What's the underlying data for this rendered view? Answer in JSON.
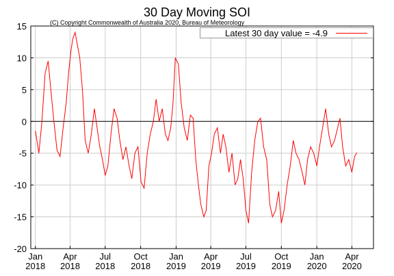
{
  "chart_data": {
    "type": "line",
    "title": "30 Day Moving SOI",
    "subtitle": "(C) Copyright Commonwealth of Australia 2020, Bureau of Meteorology",
    "xlabel": "",
    "ylabel": "",
    "ylim": [
      -20,
      15
    ],
    "yticks": [
      15,
      10,
      5,
      0,
      -5,
      -10,
      -15,
      -20
    ],
    "xticks": [
      {
        "month": "Jan",
        "year": "2018",
        "date": "2018-01-01"
      },
      {
        "month": "Apr",
        "year": "2018",
        "date": "2018-04-01"
      },
      {
        "month": "Jul",
        "year": "2018",
        "date": "2018-07-01"
      },
      {
        "month": "Oct",
        "year": "2018",
        "date": "2018-10-01"
      },
      {
        "month": "Jan",
        "year": "2019",
        "date": "2019-01-01"
      },
      {
        "month": "Apr",
        "year": "2019",
        "date": "2019-04-01"
      },
      {
        "month": "Jul",
        "year": "2019",
        "date": "2019-07-01"
      },
      {
        "month": "Oct",
        "year": "2019",
        "date": "2019-10-01"
      },
      {
        "month": "Jan",
        "year": "2020",
        "date": "2020-01-01"
      },
      {
        "month": "Apr",
        "year": "2020",
        "date": "2020-04-01"
      }
    ],
    "grid": true,
    "legend_position": "top-right",
    "series": [
      {
        "name": "Latest 30 day value = -4.9",
        "color": "#ff0000",
        "x": [
          "2018-01-01",
          "2018-01-10",
          "2018-01-18",
          "2018-01-26",
          "2018-02-03",
          "2018-02-10",
          "2018-02-18",
          "2018-02-26",
          "2018-03-06",
          "2018-03-14",
          "2018-03-22",
          "2018-03-28",
          "2018-04-03",
          "2018-04-08",
          "2018-04-14",
          "2018-04-20",
          "2018-04-26",
          "2018-05-03",
          "2018-05-10",
          "2018-05-18",
          "2018-05-26",
          "2018-06-03",
          "2018-06-10",
          "2018-06-17",
          "2018-06-24",
          "2018-07-01",
          "2018-07-08",
          "2018-07-16",
          "2018-07-24",
          "2018-08-01",
          "2018-08-08",
          "2018-08-16",
          "2018-08-24",
          "2018-09-01",
          "2018-09-08",
          "2018-09-16",
          "2018-09-24",
          "2018-10-02",
          "2018-10-10",
          "2018-10-18",
          "2018-10-26",
          "2018-11-03",
          "2018-11-10",
          "2018-11-18",
          "2018-11-26",
          "2018-12-04",
          "2018-12-11",
          "2018-12-18",
          "2018-12-24",
          "2018-12-30",
          "2019-01-07",
          "2019-01-14",
          "2019-01-22",
          "2019-01-30",
          "2019-02-07",
          "2019-02-14",
          "2019-02-21",
          "2019-02-28",
          "2019-03-06",
          "2019-03-14",
          "2019-03-20",
          "2019-03-27",
          "2019-04-03",
          "2019-04-10",
          "2019-04-18",
          "2019-04-26",
          "2019-05-03",
          "2019-05-10",
          "2019-05-18",
          "2019-05-26",
          "2019-06-03",
          "2019-06-10",
          "2019-06-17",
          "2019-06-24",
          "2019-07-01",
          "2019-07-08",
          "2019-07-16",
          "2019-07-24",
          "2019-08-01",
          "2019-08-08",
          "2019-08-16",
          "2019-08-24",
          "2019-09-01",
          "2019-09-08",
          "2019-09-16",
          "2019-09-24",
          "2019-10-01",
          "2019-10-08",
          "2019-10-16",
          "2019-10-24",
          "2019-11-01",
          "2019-11-08",
          "2019-11-16",
          "2019-11-24",
          "2019-12-01",
          "2019-12-08",
          "2019-12-16",
          "2019-12-24",
          "2020-01-01",
          "2020-01-08",
          "2020-01-16",
          "2020-01-24",
          "2020-02-01",
          "2020-02-08",
          "2020-02-16",
          "2020-02-24",
          "2020-03-01",
          "2020-03-08",
          "2020-03-16",
          "2020-03-24",
          "2020-04-01",
          "2020-04-08",
          "2020-04-14"
        ],
        "y": [
          -1.5,
          -5,
          0,
          7.5,
          9.5,
          5,
          0,
          -4.5,
          -5.5,
          -1,
          3,
          7.5,
          11,
          13,
          14,
          12,
          10,
          5,
          -3,
          -5,
          -2,
          2,
          -1,
          -4,
          -6,
          -8.5,
          -7,
          -2,
          2,
          0.5,
          -3,
          -6,
          -4,
          -7,
          -9,
          -5,
          -4,
          -9.5,
          -10.5,
          -5,
          -2,
          0,
          3.5,
          0,
          2,
          -2,
          -3,
          -1,
          3,
          10,
          9,
          3,
          -1,
          -3,
          1,
          0.5,
          -6,
          -10,
          -13,
          -15,
          -14,
          -7,
          -5,
          -2,
          -1,
          -5,
          -2,
          -4,
          -8,
          -5,
          -10,
          -9,
          -6,
          -9,
          -14,
          -16,
          -8,
          -3,
          0,
          0.5,
          -4,
          -6,
          -13,
          -15,
          -14,
          -11,
          -16,
          -14,
          -10,
          -7,
          -3,
          -5,
          -6,
          -8,
          -10,
          -6,
          -4,
          -5,
          -7,
          -4,
          -1,
          2,
          -2,
          -4,
          -3,
          -1,
          0.5,
          -4,
          -7,
          -6,
          -8,
          -5.5,
          -4.9
        ]
      }
    ]
  }
}
